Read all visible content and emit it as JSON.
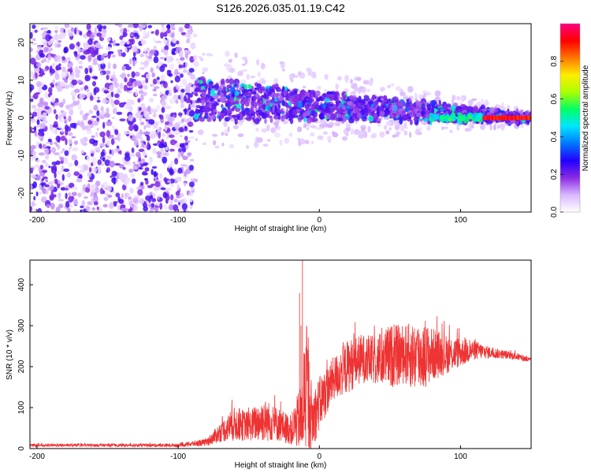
{
  "figure": {
    "title": "S126.2026.035.01.19.C42"
  },
  "chart_data": [
    {
      "type": "heatmap",
      "xlabel": "Height of straight line (km)",
      "ylabel": "Frequency (Hz)",
      "xlim": [
        -205,
        150
      ],
      "ylim": [
        -25,
        25
      ],
      "xticks": [
        -200,
        -100,
        0,
        100
      ],
      "yticks": [
        -20,
        -10,
        0,
        10,
        20
      ],
      "grid": false,
      "colorbar": {
        "label": "Normalized spectral amplitude",
        "range": [
          0,
          1
        ],
        "ticks": [
          0.0,
          0.2,
          0.4,
          0.6,
          0.8
        ],
        "colormap": [
          "#ffffff",
          "#d9b8ff",
          "#8a2be2",
          "#2200ff",
          "#0077ff",
          "#00e5ff",
          "#00ff66",
          "#aaff00",
          "#ffee00",
          "#ff7700",
          "#ff0000",
          "#ff0080"
        ]
      },
      "regions": [
        {
          "x": [
            -205,
            -88
          ],
          "y": [
            -25,
            25
          ],
          "description": "broadband noise",
          "amplitude": 0.08
        },
        {
          "x": [
            -88,
            150
          ],
          "y": [
            -3,
            7
          ],
          "description": "signal band narrowing toward 0 Hz",
          "amplitude": 0.35
        },
        {
          "x": [
            115,
            150
          ],
          "y": [
            -1,
            1
          ],
          "description": "strong line near 0 Hz",
          "amplitude": 0.95
        }
      ]
    },
    {
      "type": "line",
      "xlabel": "Height of straight line (km)",
      "ylabel": "SNR (10 * v/v)",
      "xlim": [
        -205,
        150
      ],
      "ylim": [
        0,
        460
      ],
      "xticks": [
        -200,
        -100,
        0,
        100
      ],
      "yticks": [
        0,
        100,
        200,
        300,
        400
      ],
      "grid": false,
      "series": [
        {
          "color": "#ee3333",
          "envelope": {
            "x": [
              -205,
              -150,
              -100,
              -80,
              -70,
              -60,
              -50,
              -40,
              -30,
              -20,
              -12,
              -10,
              -5,
              0,
              10,
              20,
              30,
              40,
              50,
              60,
              70,
              80,
              90,
              100,
              110,
              120,
              130,
              140,
              150
            ],
            "mean": [
              8,
              8,
              8,
              15,
              40,
              60,
              55,
              70,
              60,
              45,
              80,
              160,
              70,
              110,
              170,
              200,
              220,
              215,
              225,
              230,
              225,
              230,
              230,
              235,
              240,
              235,
              230,
              225,
              215
            ],
            "amp": [
              6,
              6,
              7,
              15,
              40,
              70,
              60,
              90,
              70,
              60,
              150,
              300,
              120,
              110,
              90,
              110,
              100,
              100,
              130,
              120,
              150,
              110,
              80,
              60,
              40,
              25,
              18,
              15,
              12
            ]
          }
        }
      ]
    }
  ]
}
